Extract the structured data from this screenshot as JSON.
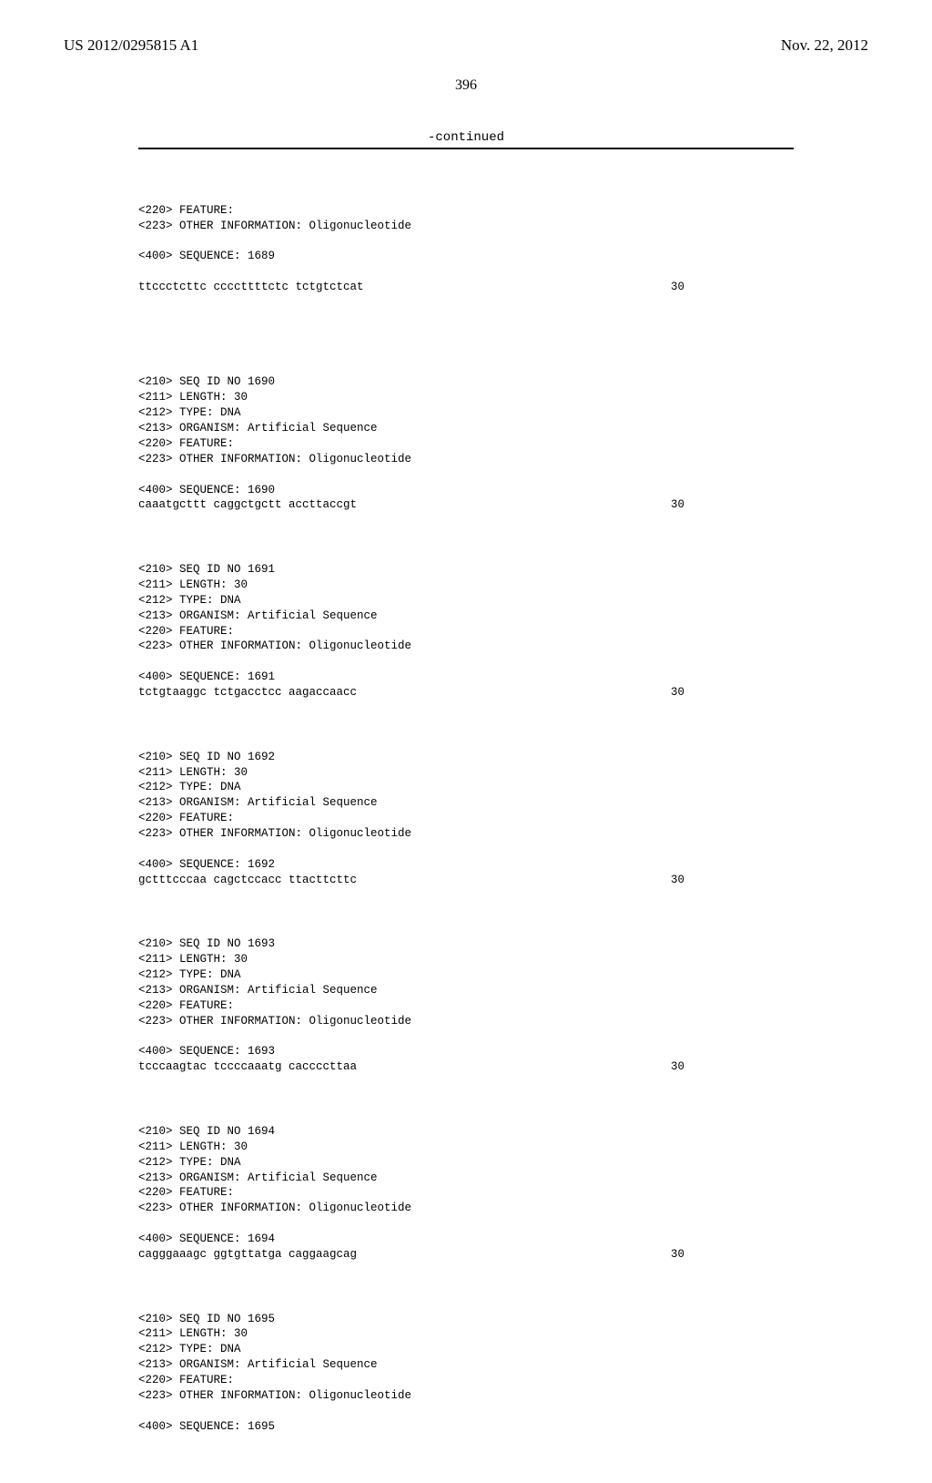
{
  "header": {
    "left": "US 2012/0295815 A1",
    "right": "Nov. 22, 2012"
  },
  "page_number": "396",
  "continued_label": "-continued",
  "top_block": {
    "feature": "<220> FEATURE:",
    "other_info": "<223> OTHER INFORMATION: Oligonucleotide",
    "seq_label": "<400> SEQUENCE: 1689",
    "sequence": "ttccctcttc ccccttttctc tctgtctcat",
    "seq_len": "30"
  },
  "blocks": [
    {
      "seq_id": "<210> SEQ ID NO 1690",
      "length": "<211> LENGTH: 30",
      "type": "<212> TYPE: DNA",
      "organism": "<213> ORGANISM: Artificial Sequence",
      "feature": "<220> FEATURE:",
      "other_info": "<223> OTHER INFORMATION: Oligonucleotide",
      "seq_label": "<400> SEQUENCE: 1690",
      "sequence": "caaatgcttt caggctgctt accttaccgt",
      "seq_len": "30"
    },
    {
      "seq_id": "<210> SEQ ID NO 1691",
      "length": "<211> LENGTH: 30",
      "type": "<212> TYPE: DNA",
      "organism": "<213> ORGANISM: Artificial Sequence",
      "feature": "<220> FEATURE:",
      "other_info": "<223> OTHER INFORMATION: Oligonucleotide",
      "seq_label": "<400> SEQUENCE: 1691",
      "sequence": "tctgtaaggc tctgacctcc aagaccaacc",
      "seq_len": "30"
    },
    {
      "seq_id": "<210> SEQ ID NO 1692",
      "length": "<211> LENGTH: 30",
      "type": "<212> TYPE: DNA",
      "organism": "<213> ORGANISM: Artificial Sequence",
      "feature": "<220> FEATURE:",
      "other_info": "<223> OTHER INFORMATION: Oligonucleotide",
      "seq_label": "<400> SEQUENCE: 1692",
      "sequence": "gctttcccaa cagctccacc ttacttcttc",
      "seq_len": "30"
    },
    {
      "seq_id": "<210> SEQ ID NO 1693",
      "length": "<211> LENGTH: 30",
      "type": "<212> TYPE: DNA",
      "organism": "<213> ORGANISM: Artificial Sequence",
      "feature": "<220> FEATURE:",
      "other_info": "<223> OTHER INFORMATION: Oligonucleotide",
      "seq_label": "<400> SEQUENCE: 1693",
      "sequence": "tcccaagtac tccccaaatg caccccttaa",
      "seq_len": "30"
    },
    {
      "seq_id": "<210> SEQ ID NO 1694",
      "length": "<211> LENGTH: 30",
      "type": "<212> TYPE: DNA",
      "organism": "<213> ORGANISM: Artificial Sequence",
      "feature": "<220> FEATURE:",
      "other_info": "<223> OTHER INFORMATION: Oligonucleotide",
      "seq_label": "<400> SEQUENCE: 1694",
      "sequence": "cagggaaagc ggtgttatga caggaagcag",
      "seq_len": "30"
    },
    {
      "seq_id": "<210> SEQ ID NO 1695",
      "length": "<211> LENGTH: 30",
      "type": "<212> TYPE: DNA",
      "organism": "<213> ORGANISM: Artificial Sequence",
      "feature": "<220> FEATURE:",
      "other_info": "<223> OTHER INFORMATION: Oligonucleotide",
      "seq_label": "<400> SEQUENCE: 1695",
      "sequence": "",
      "seq_len": ""
    }
  ]
}
